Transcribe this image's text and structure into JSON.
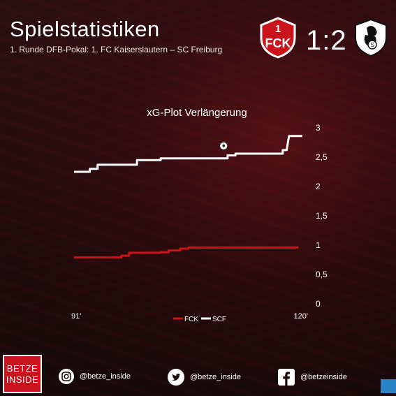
{
  "header": {
    "title": "Spielstatistiken",
    "subtitle": "1. Runde DFB-Pokal: 1. FC Kaiserslautern – SC Freiburg",
    "score": "1:2",
    "home_crest_letters": "1FCK"
  },
  "colors": {
    "fck": "#c8141a",
    "scf": "#ffffff",
    "accent": "#c8141a",
    "background": "#1c0a0b"
  },
  "chart_data": {
    "type": "line",
    "title": "xG-Plot Verlängerung",
    "xlabel": "",
    "ylabel": "",
    "x_ticks": [
      "91'",
      "120'"
    ],
    "xlim": [
      91,
      120
    ],
    "ylim": [
      0,
      3
    ],
    "y_ticks": [
      "0",
      "0,5",
      "1",
      "1,5",
      "2",
      "2,5",
      "3"
    ],
    "y_tick_values": [
      0,
      0.5,
      1,
      1.5,
      2,
      2.5,
      3
    ],
    "grid": false,
    "legend": "bottom-center",
    "series": [
      {
        "name": "FCK",
        "color": "#c8141a",
        "points": [
          [
            91,
            0.79
          ],
          [
            97,
            0.79
          ],
          [
            97,
            0.82
          ],
          [
            98,
            0.82
          ],
          [
            98,
            0.87
          ],
          [
            102,
            0.87
          ],
          [
            102,
            0.88
          ],
          [
            103,
            0.88
          ],
          [
            103,
            0.91
          ],
          [
            104.5,
            0.91
          ],
          [
            104.5,
            0.94
          ],
          [
            105.5,
            0.94
          ],
          [
            105.5,
            0.96
          ],
          [
            110.5,
            0.96
          ],
          [
            110.5,
            0.96
          ],
          [
            119.5,
            0.96
          ]
        ]
      },
      {
        "name": "SCF",
        "color": "#ffffff",
        "points": [
          [
            91,
            2.25
          ],
          [
            93,
            2.25
          ],
          [
            93,
            2.3
          ],
          [
            94,
            2.3
          ],
          [
            94,
            2.37
          ],
          [
            99,
            2.37
          ],
          [
            99,
            2.45
          ],
          [
            102,
            2.45
          ],
          [
            102,
            2.48
          ],
          [
            110.5,
            2.48
          ],
          [
            110.5,
            2.53
          ],
          [
            111.5,
            2.53
          ],
          [
            111.5,
            2.56
          ],
          [
            117.5,
            2.56
          ],
          [
            117.5,
            2.62
          ],
          [
            118,
            2.62
          ],
          [
            118.3,
            2.86
          ],
          [
            120,
            2.86
          ]
        ]
      }
    ],
    "goal_markers": [
      {
        "series": "SCF",
        "x": 110,
        "y": 2.56
      }
    ]
  },
  "footer": {
    "logo_line1": "BETZE",
    "logo_line2": "INSIDE",
    "instagram": "@betze_inside",
    "twitter": "@betze_inside",
    "facebook": "@betzeinside",
    "icons": [
      "instagram-icon",
      "twitter-icon",
      "facebook-icon"
    ]
  }
}
